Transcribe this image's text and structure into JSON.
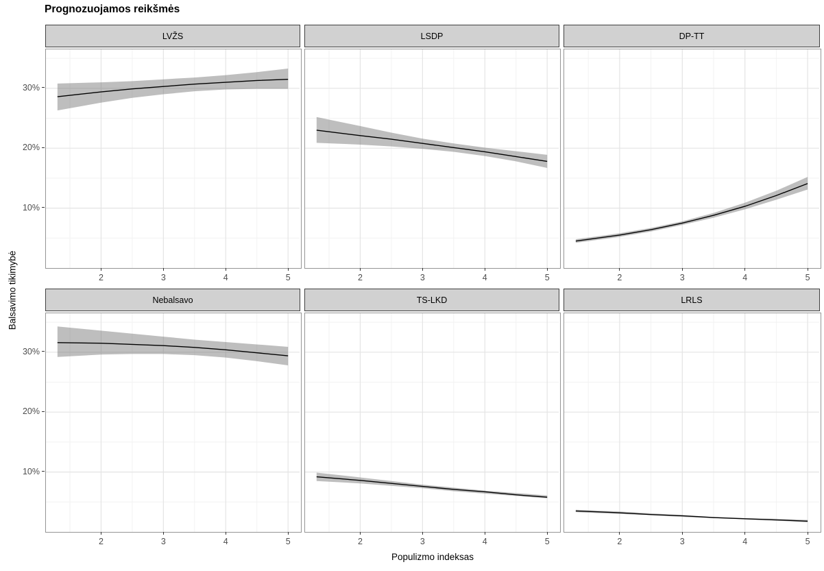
{
  "chart_data": {
    "type": "line",
    "title": "Prognozuojamos reikšmės",
    "xlabel": "Populizmo indeksas",
    "ylabel": "Balsavimo tikimybė",
    "grid": true,
    "legend": false,
    "facet_layout": {
      "rows": 2,
      "cols": 3
    },
    "xlim": [
      1.115,
      5.185
    ],
    "ylim": [
      0,
      36.5
    ],
    "x_major_ticks": [
      2,
      3,
      4,
      5
    ],
    "x_minor_ticks": [
      1.5,
      2.5,
      3.5,
      4.5
    ],
    "y_major_ticks": [
      10,
      20,
      30
    ],
    "y_tick_labels": [
      "10%",
      "20%",
      "30%"
    ],
    "y_minor_ticks": [
      5,
      15,
      25,
      35
    ],
    "x": [
      1.3,
      2,
      2.5,
      3,
      3.5,
      4,
      4.5,
      5
    ],
    "facets": [
      {
        "label": "LVŽS",
        "line": [
          28.6,
          29.4,
          29.9,
          30.3,
          30.7,
          31.0,
          31.3,
          31.5
        ],
        "upper": [
          30.8,
          31.0,
          31.2,
          31.5,
          31.8,
          32.2,
          32.7,
          33.3
        ],
        "lower": [
          26.3,
          27.6,
          28.4,
          29.0,
          29.5,
          29.8,
          29.9,
          29.9
        ]
      },
      {
        "label": "LSDP",
        "line": [
          23.0,
          22.1,
          21.5,
          20.8,
          20.1,
          19.4,
          18.6,
          17.8
        ],
        "upper": [
          25.2,
          23.7,
          22.6,
          21.6,
          20.8,
          20.1,
          19.5,
          18.9
        ],
        "lower": [
          20.9,
          20.6,
          20.3,
          19.9,
          19.4,
          18.7,
          17.8,
          16.7
        ]
      },
      {
        "label": "DP-TT",
        "line": [
          4.5,
          5.5,
          6.4,
          7.5,
          8.8,
          10.3,
          12.1,
          14.1
        ],
        "upper": [
          4.8,
          5.8,
          6.7,
          7.8,
          9.2,
          10.9,
          12.9,
          15.2
        ],
        "lower": [
          4.2,
          5.2,
          6.1,
          7.2,
          8.4,
          9.8,
          11.4,
          13.1
        ]
      },
      {
        "label": "Nebalsavo",
        "line": [
          31.6,
          31.5,
          31.3,
          31.1,
          30.8,
          30.4,
          29.9,
          29.4
        ],
        "upper": [
          34.3,
          33.6,
          33.1,
          32.6,
          32.1,
          31.7,
          31.3,
          30.9
        ],
        "lower": [
          29.2,
          29.6,
          29.7,
          29.7,
          29.5,
          29.1,
          28.5,
          27.8
        ]
      },
      {
        "label": "TS-LKD",
        "line": [
          9.2,
          8.6,
          8.1,
          7.6,
          7.1,
          6.7,
          6.2,
          5.8
        ],
        "upper": [
          9.9,
          9.1,
          8.5,
          7.9,
          7.4,
          6.9,
          6.5,
          6.1
        ],
        "lower": [
          8.5,
          8.1,
          7.7,
          7.3,
          6.8,
          6.4,
          6.0,
          5.6
        ]
      },
      {
        "label": "LRLS",
        "line": [
          3.5,
          3.2,
          2.9,
          2.7,
          2.4,
          2.2,
          2.0,
          1.8
        ],
        "upper": [
          3.7,
          3.4,
          3.1,
          2.8,
          2.5,
          2.3,
          2.2,
          2.0
        ],
        "lower": [
          3.3,
          3.0,
          2.8,
          2.5,
          2.3,
          2.1,
          1.9,
          1.6
        ]
      }
    ],
    "colors": {
      "ribbon": "#6e6e6e",
      "ribbon_opacity": 0.45,
      "line": "#000000",
      "strip_fill": "#d1d1d1",
      "strip_border": "#404040",
      "panel_border": "#949494",
      "grid_major": "#e4e4e4",
      "grid_minor": "#f2f2f2",
      "tick_label": "#4d4d4d",
      "tick_mark": "#333333"
    }
  }
}
